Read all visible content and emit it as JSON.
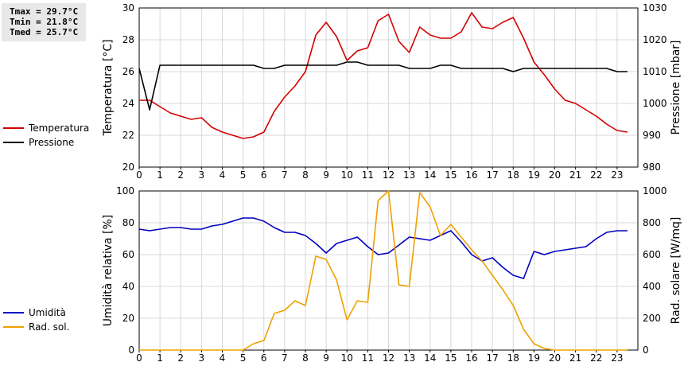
{
  "stats": {
    "tmax": "Tmax = 29.7°C",
    "tmin": "Tmin = 21.8°C",
    "tmed": "Tmed = 25.7°C"
  },
  "colors": {
    "temperatura": "#d40000",
    "pressione": "#000000",
    "umidita": "#0000c0",
    "radsol": "#f0a000"
  },
  "chart_data": [
    {
      "type": "line",
      "xlim": [
        0,
        24
      ],
      "xticks": [
        "0",
        "1",
        "2",
        "3",
        "4",
        "5",
        "6",
        "7",
        "8",
        "9",
        "10",
        "11",
        "12",
        "13",
        "14",
        "15",
        "16",
        "17",
        "18",
        "19",
        "20",
        "21",
        "22",
        "23"
      ],
      "ylabel": "Temperatura [°C]",
      "ylabel_right": "Pressione [mbar]",
      "ylim": [
        20,
        30
      ],
      "ylim_right": [
        980,
        1030
      ],
      "yticks": [
        "20",
        "22",
        "24",
        "26",
        "28",
        "30"
      ],
      "yticks_right": [
        "980",
        "990",
        "1000",
        "1010",
        "1020",
        "1030"
      ],
      "grid": true,
      "legend": [
        "Temperatura",
        "Pressione"
      ],
      "series": [
        {
          "name": "Temperatura",
          "axis": "left",
          "x": [
            0,
            0.5,
            1,
            1.5,
            2,
            2.5,
            3,
            3.5,
            4,
            4.5,
            5,
            5.5,
            6,
            6.5,
            7,
            7.5,
            8,
            8.5,
            9,
            9.5,
            10,
            10.5,
            11,
            11.5,
            12,
            12.5,
            13,
            13.5,
            14,
            14.5,
            15,
            15.5,
            16,
            16.5,
            17,
            17.5,
            18,
            18.5,
            19,
            19.5,
            20,
            20.5,
            21,
            21.5,
            22,
            22.5,
            23,
            23.5
          ],
          "values": [
            24.2,
            24.2,
            23.8,
            23.4,
            23.2,
            23.0,
            23.1,
            22.5,
            22.2,
            22.0,
            21.8,
            21.9,
            22.2,
            23.5,
            24.4,
            25.1,
            26.0,
            28.3,
            29.1,
            28.2,
            26.7,
            27.3,
            27.5,
            29.2,
            29.6,
            27.9,
            27.2,
            28.8,
            28.3,
            28.1,
            28.1,
            28.5,
            29.7,
            28.8,
            28.7,
            29.1,
            29.4,
            28.1,
            26.6,
            25.8,
            24.9,
            24.2,
            24.0,
            23.6,
            23.2,
            22.7,
            22.3,
            22.2
          ]
        },
        {
          "name": "Pressione",
          "axis": "right",
          "x": [
            0,
            0.5,
            1,
            1.5,
            2,
            2.5,
            3,
            3.5,
            4,
            4.5,
            5,
            5.5,
            6,
            6.5,
            7,
            7.5,
            8,
            8.5,
            9,
            9.5,
            10,
            10.5,
            11,
            11.5,
            12,
            12.5,
            13,
            13.5,
            14,
            14.5,
            15,
            15.5,
            16,
            16.5,
            17,
            17.5,
            18,
            18.5,
            19,
            19.5,
            20,
            20.5,
            21,
            21.5,
            22,
            22.5,
            23,
            23.5
          ],
          "values": [
            1011,
            998,
            1012,
            1012,
            1012,
            1012,
            1012,
            1012,
            1012,
            1012,
            1012,
            1012,
            1011,
            1011,
            1012,
            1012,
            1012,
            1012,
            1012,
            1012,
            1013,
            1013,
            1012,
            1012,
            1012,
            1012,
            1011,
            1011,
            1011,
            1012,
            1012,
            1011,
            1011,
            1011,
            1011,
            1011,
            1010,
            1011,
            1011,
            1011,
            1011,
            1011,
            1011,
            1011,
            1011,
            1011,
            1010,
            1010
          ]
        }
      ]
    },
    {
      "type": "line",
      "xlim": [
        0,
        24
      ],
      "xticks": [
        "0",
        "1",
        "2",
        "3",
        "4",
        "5",
        "6",
        "7",
        "8",
        "9",
        "10",
        "11",
        "12",
        "13",
        "14",
        "15",
        "16",
        "17",
        "18",
        "19",
        "20",
        "21",
        "22",
        "23"
      ],
      "ylabel": "Umidità relativa [%]",
      "ylabel_right": "Rad. solare [W/mq]",
      "ylim": [
        0,
        100
      ],
      "ylim_right": [
        0,
        1000
      ],
      "yticks": [
        "0",
        "20",
        "40",
        "60",
        "80",
        "100"
      ],
      "yticks_right": [
        "0",
        "200",
        "400",
        "600",
        "800",
        "1000"
      ],
      "grid": true,
      "legend": [
        "Umidità",
        "Rad. sol."
      ],
      "series": [
        {
          "name": "Umidità",
          "axis": "left",
          "x": [
            0,
            0.5,
            1,
            1.5,
            2,
            2.5,
            3,
            3.5,
            4,
            4.5,
            5,
            5.5,
            6,
            6.5,
            7,
            7.5,
            8,
            8.5,
            9,
            9.5,
            10,
            10.5,
            11,
            11.5,
            12,
            12.5,
            13,
            13.5,
            14,
            14.5,
            15,
            15.5,
            16,
            16.5,
            17,
            17.5,
            18,
            18.5,
            19,
            19.5,
            20,
            20.5,
            21,
            21.5,
            22,
            22.5,
            23,
            23.5
          ],
          "values": [
            76,
            75,
            76,
            77,
            77,
            76,
            76,
            78,
            79,
            81,
            83,
            83,
            81,
            77,
            74,
            74,
            72,
            67,
            61,
            67,
            69,
            71,
            65,
            60,
            61,
            66,
            71,
            70,
            69,
            72,
            75,
            68,
            60,
            56,
            58,
            52,
            47,
            45,
            62,
            60,
            62,
            63,
            64,
            65,
            70,
            74,
            75,
            75
          ]
        },
        {
          "name": "Rad. sol.",
          "axis": "right",
          "x": [
            0,
            0.5,
            1,
            1.5,
            2,
            2.5,
            3,
            3.5,
            4,
            4.5,
            5,
            5.5,
            6,
            6.5,
            7,
            7.5,
            8,
            8.5,
            9,
            9.5,
            10,
            10.5,
            11,
            11.5,
            12,
            12.5,
            13,
            13.5,
            14,
            14.5,
            15,
            15.5,
            16,
            16.5,
            17,
            17.5,
            18,
            18.5,
            19,
            19.5,
            20,
            20.5,
            21,
            21.5,
            22,
            22.5,
            23,
            23.5
          ],
          "values": [
            0,
            0,
            0,
            0,
            0,
            0,
            0,
            0,
            0,
            0,
            0,
            40,
            60,
            230,
            250,
            310,
            280,
            590,
            570,
            440,
            190,
            310,
            300,
            940,
            1000,
            410,
            400,
            990,
            900,
            720,
            790,
            710,
            630,
            560,
            470,
            380,
            280,
            130,
            40,
            10,
            0,
            0,
            0,
            0,
            0,
            0,
            0,
            0
          ]
        }
      ]
    }
  ]
}
